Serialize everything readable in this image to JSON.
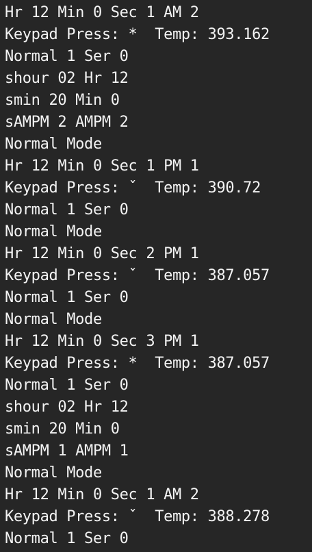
{
  "terminal": {
    "lines": [
      "Hr 12 Min 0 Sec 1 AM 2",
      "Keypad Press: *  Temp: 393.162",
      "Normal 1 Ser 0",
      "shour 02 Hr 12",
      "smin 20 Min 0",
      "sAMPM 2 AMPM 2",
      "Normal Mode",
      "Hr 12 Min 0 Sec 1 PM 1",
      "Keypad Press: ˇ  Temp: 390.72",
      "Normal 1 Ser 0",
      "Normal Mode",
      "Hr 12 Min 0 Sec 2 PM 1",
      "Keypad Press: ˇ  Temp: 387.057",
      "Normal 1 Ser 0",
      "Normal Mode",
      "Hr 12 Min 0 Sec 3 PM 1",
      "Keypad Press: *  Temp: 387.057",
      "Normal 1 Ser 0",
      "shour 02 Hr 12",
      "smin 20 Min 0",
      "sAMPM 1 AMPM 1",
      "Normal Mode",
      "Hr 12 Min 0 Sec 1 AM 2",
      "Keypad Press: ˇ  Temp: 388.278",
      "Normal 1 Ser 0"
    ]
  }
}
